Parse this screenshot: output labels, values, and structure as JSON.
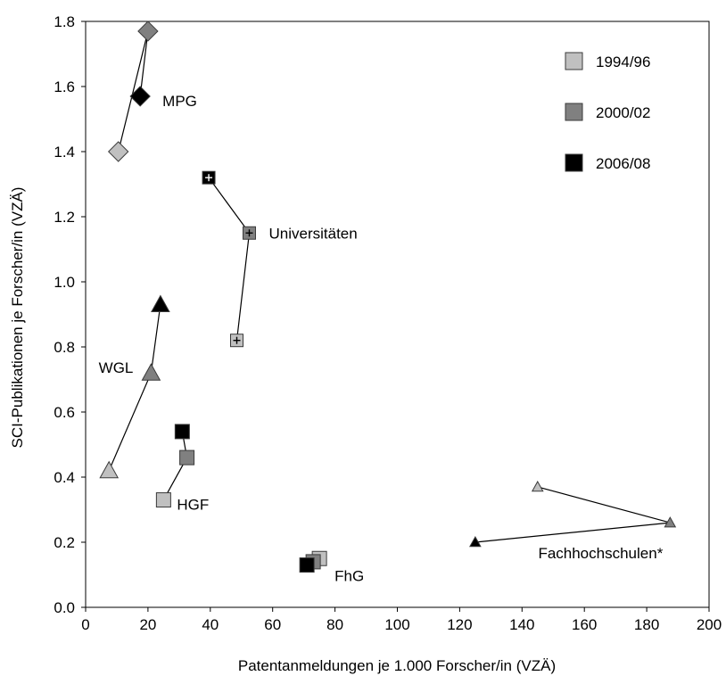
{
  "chart_data": {
    "type": "scatter",
    "xlabel": "Patentanmeldungen je 1.000 Forscher/in (VZÄ)",
    "ylabel": "SCI-Publikationen je Forscher/in (VZÄ)",
    "xlim": [
      0,
      200
    ],
    "ylim": [
      0,
      1.8
    ],
    "x_ticks": [
      "0",
      "20",
      "40",
      "60",
      "80",
      "100",
      "120",
      "140",
      "160",
      "180",
      "200"
    ],
    "y_ticks": [
      "0.0",
      "0.2",
      "0.4",
      "0.6",
      "0.8",
      "1.0",
      "1.2",
      "1.4",
      "1.6",
      "1.8"
    ],
    "grid": false,
    "legend_position": "top-right",
    "legend": [
      {
        "label": "1994/96",
        "color": "#c0c0c0"
      },
      {
        "label": "2000/02",
        "color": "#808080"
      },
      {
        "label": "2006/08",
        "color": "#000000"
      }
    ],
    "series": [
      {
        "name": "MPG",
        "marker": "diamond",
        "points": [
          {
            "period": "1994/96",
            "x": 10.5,
            "y": 1.4
          },
          {
            "period": "2000/02",
            "x": 20.0,
            "y": 1.77
          },
          {
            "period": "2006/08",
            "x": 17.5,
            "y": 1.57
          }
        ]
      },
      {
        "name": "Universitäten",
        "marker": "square-plus",
        "points": [
          {
            "period": "1994/96",
            "x": 48.5,
            "y": 0.82
          },
          {
            "period": "2000/02",
            "x": 52.5,
            "y": 1.15
          },
          {
            "period": "2006/08",
            "x": 39.5,
            "y": 1.32
          }
        ]
      },
      {
        "name": "WGL",
        "marker": "triangle",
        "points": [
          {
            "period": "1994/96",
            "x": 7.5,
            "y": 0.42
          },
          {
            "period": "2000/02",
            "x": 21.0,
            "y": 0.72
          },
          {
            "period": "2006/08",
            "x": 24.0,
            "y": 0.93
          }
        ]
      },
      {
        "name": "HGF",
        "marker": "square",
        "points": [
          {
            "period": "1994/96",
            "x": 25.0,
            "y": 0.33
          },
          {
            "period": "2000/02",
            "x": 32.5,
            "y": 0.46
          },
          {
            "period": "2006/08",
            "x": 31.0,
            "y": 0.54
          }
        ]
      },
      {
        "name": "FhG",
        "marker": "square",
        "points": [
          {
            "period": "1994/96",
            "x": 75.0,
            "y": 0.15
          },
          {
            "period": "2000/02",
            "x": 73.0,
            "y": 0.14
          },
          {
            "period": "2006/08",
            "x": 71.0,
            "y": 0.13
          }
        ]
      },
      {
        "name": "Fachhochschulen*",
        "marker": "small-triangle",
        "points": [
          {
            "period": "1994/96",
            "x": 145.0,
            "y": 0.37
          },
          {
            "period": "2000/02",
            "x": 187.5,
            "y": 0.26
          },
          {
            "period": "2006/08",
            "x": 125.0,
            "y": 0.2
          }
        ]
      }
    ]
  }
}
